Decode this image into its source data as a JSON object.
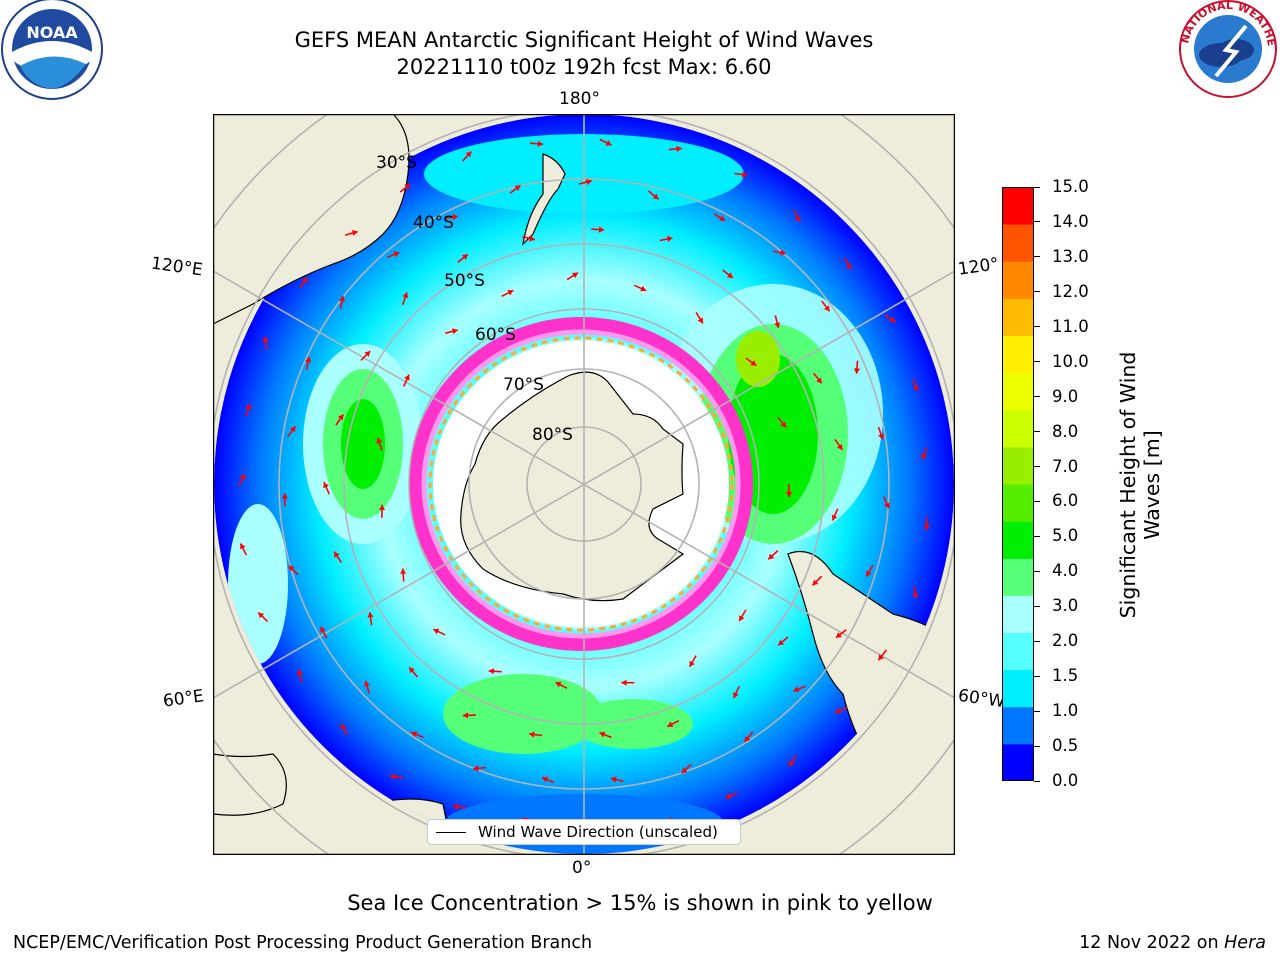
{
  "header": {
    "title_line1": "GEFS MEAN Antarctic Significant Height of Wind Waves",
    "title_line2": "20221110 t00z 192h fcst   Max: 6.60"
  },
  "logos": {
    "left": {
      "name": "NOARA-logo",
      "text": "NOAA"
    },
    "right": {
      "name": "national-weather-service-logo",
      "text": "NATIONAL WEATHER SERVICE"
    }
  },
  "map": {
    "projection": "south-polar-stereographic",
    "longitude_labels": {
      "top": "180°",
      "bottom": "0°",
      "upper_left": "120°E",
      "upper_right": "120°",
      "lower_left": "60°E",
      "lower_right": "60°W"
    },
    "latitude_labels": [
      "30°S",
      "40°S",
      "50°S",
      "60°S",
      "70°S",
      "80°S"
    ],
    "colors": {
      "land": "#eeecda",
      "gridline": "#b3b3b3",
      "arrow": "#ff0000",
      "ice_edge": [
        "#ff33cc",
        "#ff99ee",
        "#ffaa33",
        "#ffee44"
      ]
    }
  },
  "legend": {
    "line_label": "Wind Wave Direction (unscaled)"
  },
  "colorbar": {
    "title_line1": "Significant Height of Wind",
    "title_line2": "Waves [m]",
    "ticks": [
      "15.0",
      "14.0",
      "13.0",
      "12.0",
      "11.0",
      "10.0",
      "9.0",
      "8.0",
      "7.0",
      "6.0",
      "5.0",
      "4.0",
      "3.0",
      "2.0",
      "1.5",
      "1.0",
      "0.5",
      "0.0"
    ],
    "colors_bottom_to_top": [
      "#0000ff",
      "#0077ff",
      "#00eeff",
      "#55ffff",
      "#aaffff",
      "#55ff77",
      "#00ee00",
      "#55ee00",
      "#99ee00",
      "#ccff00",
      "#eeff00",
      "#ffee00",
      "#ffbb00",
      "#ff8800",
      "#ff5500",
      "#ff0000"
    ]
  },
  "footer": {
    "note": "Sea Ice Concentration > 15% is shown in pink to yellow",
    "credit": "NCEP/EMC/Verification Post Processing Product Generation Branch",
    "date": "12 Nov 2022 on ",
    "date_italic": "Hera"
  }
}
